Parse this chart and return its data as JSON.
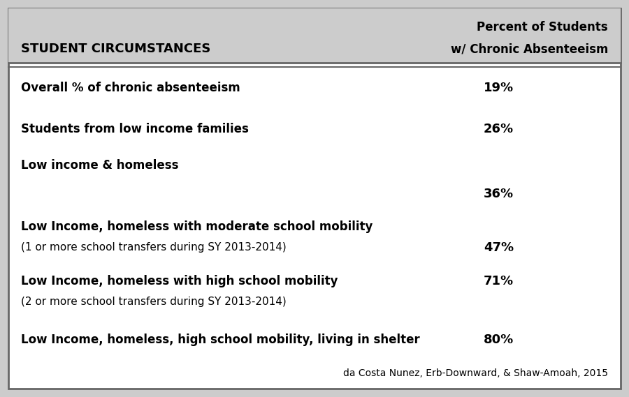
{
  "header_col1": "STUDENT CIRCUMSTANCES",
  "header_col2_line1": "Percent of Students",
  "header_col2_line2": "w/ Chronic Absenteeism",
  "header_bg": "#cccccc",
  "table_bg": "#ffffff",
  "border_color": "#666666",
  "rows": [
    {
      "label_bold": "Overall % of chronic absenteeism",
      "label_normal": "",
      "value": "19%",
      "value_align": "bold_line"
    },
    {
      "label_bold": "Students from low income families",
      "label_normal": "",
      "value": "26%",
      "value_align": "bold_line"
    },
    {
      "label_bold": "Low income & homeless",
      "label_normal": "",
      "value": "36%",
      "value_align": "below_bold"
    },
    {
      "label_bold": "Low Income, homeless with moderate school mobility",
      "label_normal": "(1 or more school transfers during SY 2013-2014)",
      "value": "47%",
      "value_align": "normal_line"
    },
    {
      "label_bold": "Low Income, homeless with high school mobility",
      "label_normal": "(2 or more school transfers during SY 2013-2014)",
      "value": "71%",
      "value_align": "bold_line"
    },
    {
      "label_bold": "Low Income, homeless, high school mobility, living in shelter",
      "label_normal": "",
      "value": "80%",
      "value_align": "bold_line"
    }
  ],
  "citation": "da Costa Nunez, Erb-Downward, & Shaw-Amoah, 2015",
  "fig_width": 9.0,
  "fig_height": 5.69
}
